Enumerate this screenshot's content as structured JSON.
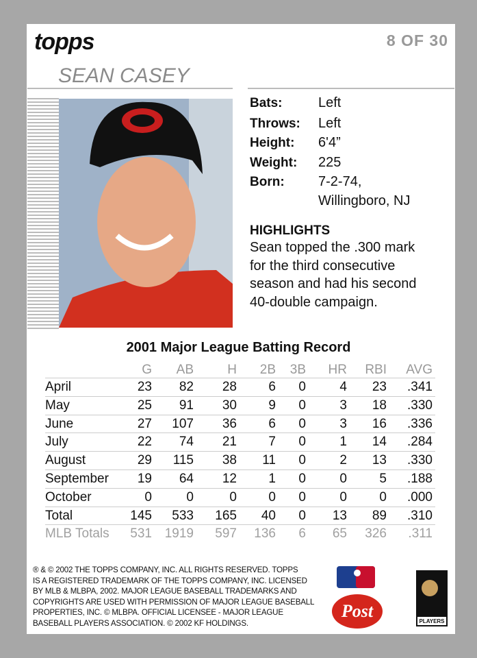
{
  "header": {
    "brand": "topps",
    "card_number": "8 OF 30",
    "player_name": "SEAN CASEY"
  },
  "bio": {
    "rows": [
      {
        "label": "Bats:",
        "value": "Left"
      },
      {
        "label": "Throws:",
        "value": "Left"
      },
      {
        "label": "Height:",
        "value": "6'4”"
      },
      {
        "label": "Weight:",
        "value": "225"
      },
      {
        "label": "Born:",
        "value": "7-2-74,"
      }
    ],
    "born_place": "Willingboro, NJ"
  },
  "highlights": {
    "title": "HIGHLIGHTS",
    "lines": [
      "Sean topped the .300 mark",
      "for the third consecutive",
      "season and had his second",
      "40-double campaign."
    ]
  },
  "table": {
    "title": "2001 Major League Batting Record",
    "columns": [
      "G",
      "AB",
      "H",
      "2B",
      "3B",
      "HR",
      "RBI",
      "AVG"
    ],
    "rows": [
      {
        "label": "April",
        "cells": [
          "23",
          "82",
          "28",
          "6",
          "0",
          "4",
          "23",
          ".341"
        ]
      },
      {
        "label": "May",
        "cells": [
          "25",
          "91",
          "30",
          "9",
          "0",
          "3",
          "18",
          ".330"
        ]
      },
      {
        "label": "June",
        "cells": [
          "27",
          "107",
          "36",
          "6",
          "0",
          "3",
          "16",
          ".336"
        ]
      },
      {
        "label": "July",
        "cells": [
          "22",
          "74",
          "21",
          "7",
          "0",
          "1",
          "14",
          ".284"
        ]
      },
      {
        "label": "August",
        "cells": [
          "29",
          "115",
          "38",
          "11",
          "0",
          "2",
          "13",
          ".330"
        ]
      },
      {
        "label": "September",
        "cells": [
          "19",
          "64",
          "12",
          "1",
          "0",
          "0",
          "5",
          ".188"
        ]
      },
      {
        "label": "October",
        "cells": [
          "0",
          "0",
          "0",
          "0",
          "0",
          "0",
          "0",
          ".000"
        ]
      },
      {
        "label": "Total",
        "cells": [
          "145",
          "533",
          "165",
          "40",
          "0",
          "13",
          "89",
          ".310"
        ]
      }
    ],
    "career": {
      "label": "MLB Totals",
      "cells": [
        "531",
        "1919",
        "597",
        "136",
        "6",
        "65",
        "326",
        ".311"
      ]
    }
  },
  "footer": {
    "lines": [
      "® & © 2002 THE TOPPS COMPANY, INC. ALL RIGHTS RESERVED. TOPPS",
      "IS A REGISTERED TRADEMARK OF THE TOPPS COMPANY, INC. LICENSED",
      "BY MLB & MLBPA, 2002. MAJOR LEAGUE BASEBALL TRADEMARKS AND",
      "COPYRIGHTS ARE USED WITH PERMISSION OF MAJOR LEAGUE BASEBALL",
      "PROPERTIES, INC. © MLBPA. OFFICIAL LICENSEE - MAJOR LEAGUE",
      "BASEBALL PLAYERS ASSOCIATION. © 2002 KF HOLDINGS."
    ]
  },
  "logos": {
    "post": "Post",
    "players": "PLAYERS"
  }
}
